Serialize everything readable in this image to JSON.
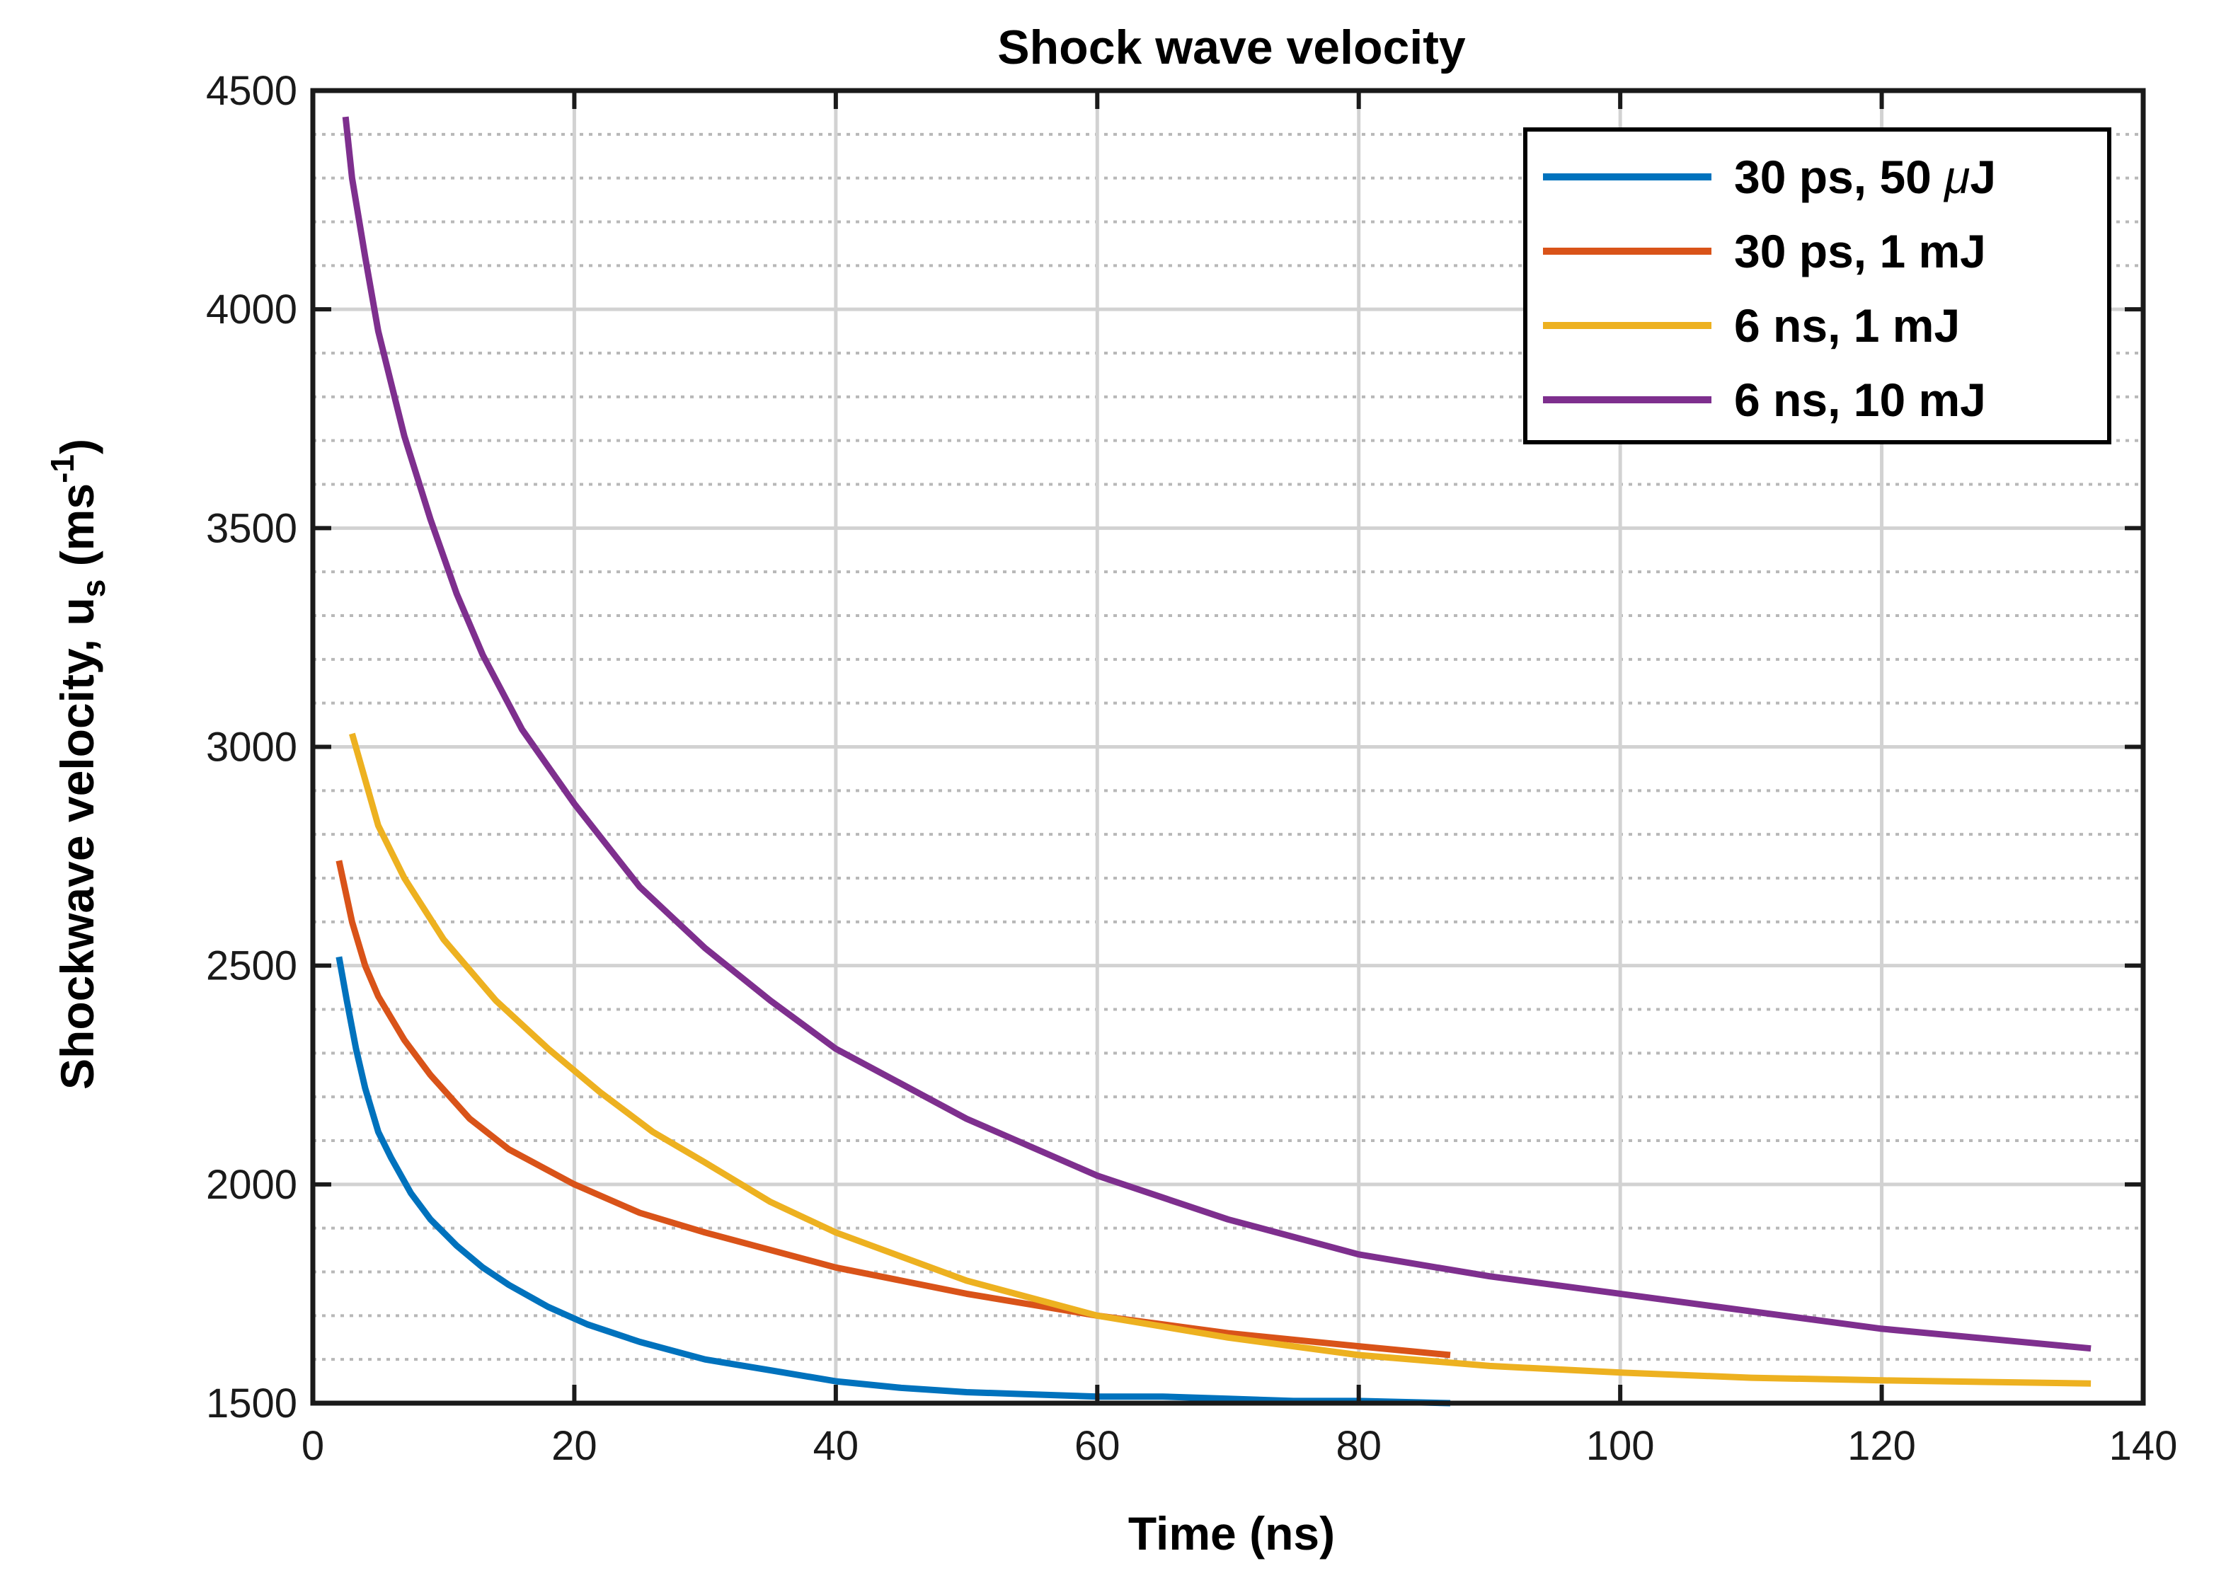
{
  "chart_data": {
    "type": "line",
    "title": "Shock wave velocity",
    "xlabel": "Time (ns)",
    "ylabel": {
      "main": "Shockwave velocity, u",
      "subscript": "s",
      "unit_open": " (ms",
      "superscript": "-1",
      "unit_close": ")"
    },
    "xlim": [
      0,
      140
    ],
    "ylim": [
      1500,
      4500
    ],
    "xticks": [
      0,
      20,
      40,
      60,
      80,
      100,
      120,
      140
    ],
    "yticks": [
      1500,
      2000,
      2500,
      3000,
      3500,
      4000,
      4500
    ],
    "grid": true,
    "minor_grid": true,
    "legend_position": "top-right",
    "series": [
      {
        "name": "30 ps, 50 μJ",
        "legend_main": "30 ps, 50 ",
        "legend_symbol": "μ",
        "legend_end": "J",
        "color": "#0072BD",
        "x": [
          2,
          2.6,
          3.3,
          4,
          5,
          6,
          7.5,
          9,
          11,
          13,
          15,
          18,
          21,
          25,
          30,
          35,
          40,
          45,
          50,
          55,
          60,
          65,
          70,
          75,
          80,
          87
        ],
        "y": [
          2520,
          2420,
          2310,
          2220,
          2120,
          2060,
          1980,
          1920,
          1860,
          1810,
          1770,
          1720,
          1680,
          1640,
          1600,
          1575,
          1550,
          1535,
          1525,
          1520,
          1515,
          1515,
          1510,
          1505,
          1505,
          1500
        ]
      },
      {
        "name": "30 ps, 1 mJ",
        "legend_main": "30 ps, 1 mJ",
        "legend_symbol": "",
        "legend_end": "",
        "color": "#D95319",
        "x": [
          2,
          3,
          4,
          5,
          7,
          9,
          12,
          15,
          20,
          25,
          30,
          40,
          50,
          60,
          70,
          80,
          87
        ],
        "y": [
          2740,
          2600,
          2500,
          2430,
          2330,
          2250,
          2150,
          2080,
          2000,
          1935,
          1890,
          1810,
          1750,
          1700,
          1660,
          1630,
          1610
        ]
      },
      {
        "name": "6 ns, 1 mJ",
        "legend_main": "6 ns, 1 mJ",
        "legend_symbol": "",
        "legend_end": "",
        "color": "#EDB120",
        "x": [
          3,
          5,
          7,
          10,
          14,
          18,
          22,
          26,
          30,
          35,
          40,
          50,
          60,
          70,
          80,
          90,
          100,
          110,
          120,
          136
        ],
        "y": [
          3030,
          2820,
          2700,
          2560,
          2420,
          2310,
          2210,
          2120,
          2050,
          1960,
          1890,
          1780,
          1700,
          1650,
          1610,
          1585,
          1570,
          1558,
          1552,
          1545
        ]
      },
      {
        "name": "6 ns, 10 mJ",
        "legend_main": "6 ns, 10 mJ",
        "legend_symbol": "",
        "legend_end": "",
        "color": "#7E2F8E",
        "x": [
          2.5,
          3,
          4,
          5,
          6,
          7,
          9,
          11,
          13,
          16,
          20,
          25,
          30,
          35,
          40,
          50,
          60,
          70,
          80,
          90,
          100,
          110,
          120,
          136
        ],
        "y": [
          4440,
          4300,
          4120,
          3950,
          3830,
          3710,
          3520,
          3350,
          3210,
          3040,
          2870,
          2680,
          2540,
          2420,
          2310,
          2150,
          2020,
          1920,
          1840,
          1790,
          1750,
          1710,
          1670,
          1625
        ]
      }
    ]
  }
}
